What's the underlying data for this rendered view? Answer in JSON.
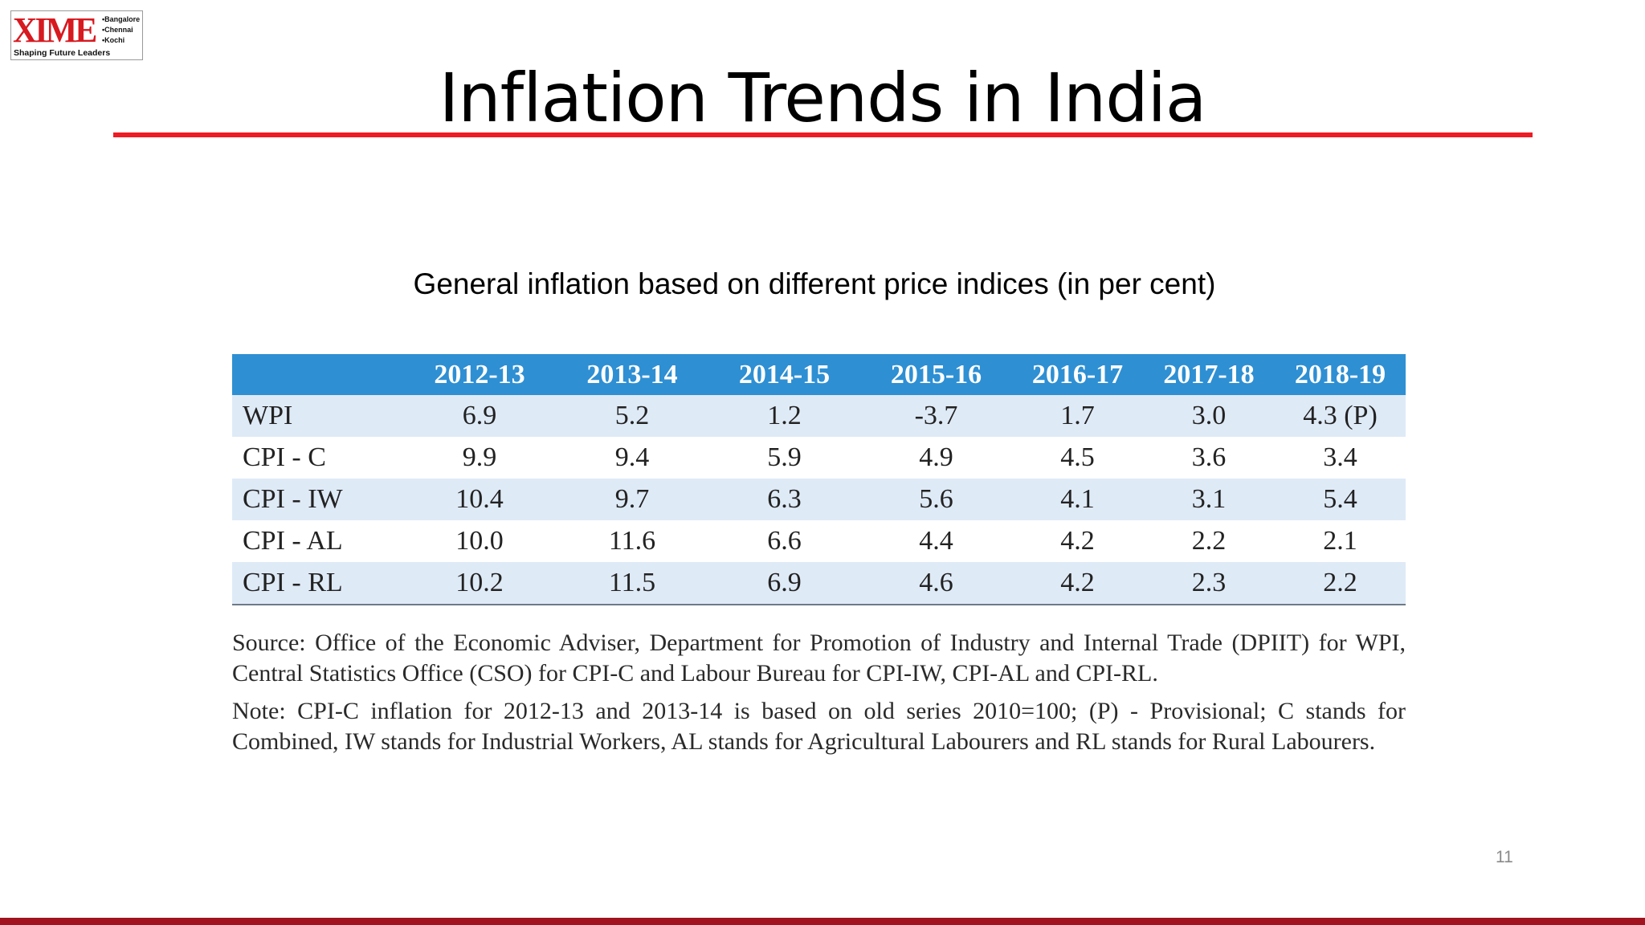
{
  "logo": {
    "word": "XIME",
    "cities": [
      "Bangalore",
      "Chennai",
      "Kochi"
    ],
    "tagline": "Shaping Future Leaders"
  },
  "title": "Inflation Trends in India",
  "subtitle": "General inflation based on different price indices (in per cent)",
  "table": {
    "columns": [
      "",
      "2012-13",
      "2013-14",
      "2014-15",
      "2015-16",
      "2016-17",
      "2017-18",
      "2018-19"
    ],
    "rows": [
      {
        "label": "WPI",
        "values": [
          "6.9",
          "5.2",
          "1.2",
          "-3.7",
          "1.7",
          "3.0",
          "4.3 (P)"
        ]
      },
      {
        "label": "CPI - C",
        "values": [
          "9.9",
          "9.4",
          "5.9",
          "4.9",
          "4.5",
          "3.6",
          "3.4"
        ]
      },
      {
        "label": "CPI - IW",
        "values": [
          "10.4",
          "9.7",
          "6.3",
          "5.6",
          "4.1",
          "3.1",
          "5.4"
        ]
      },
      {
        "label": "CPI - AL",
        "values": [
          "10.0",
          "11.6",
          "6.6",
          "4.4",
          "4.2",
          "2.2",
          "2.1"
        ]
      },
      {
        "label": "CPI - RL",
        "values": [
          "10.2",
          "11.5",
          "6.9",
          "4.6",
          "4.2",
          "2.3",
          "2.2"
        ]
      }
    ]
  },
  "source_text": "Source: Office of the Economic Adviser, Department for Promotion of Industry and Internal Trade (DPIIT) for WPI, Central Statistics Office (CSO) for CPI-C and Labour Bureau for CPI-IW, CPI-AL and CPI-RL.",
  "note_text": "Note: CPI-C inflation for 2012-13 and 2013-14 is based on old series 2010=100; (P) - Provisional; C stands for Combined, IW stands for Industrial Workers, AL stands for Agricultural Labourers and RL stands for Rural Labourers.",
  "page_number": "11",
  "colors": {
    "accent_red": "#ee1c24",
    "header_blue": "#2e8fd3",
    "row_stripe": "#dfeaf7",
    "footer": "#a0131f"
  }
}
